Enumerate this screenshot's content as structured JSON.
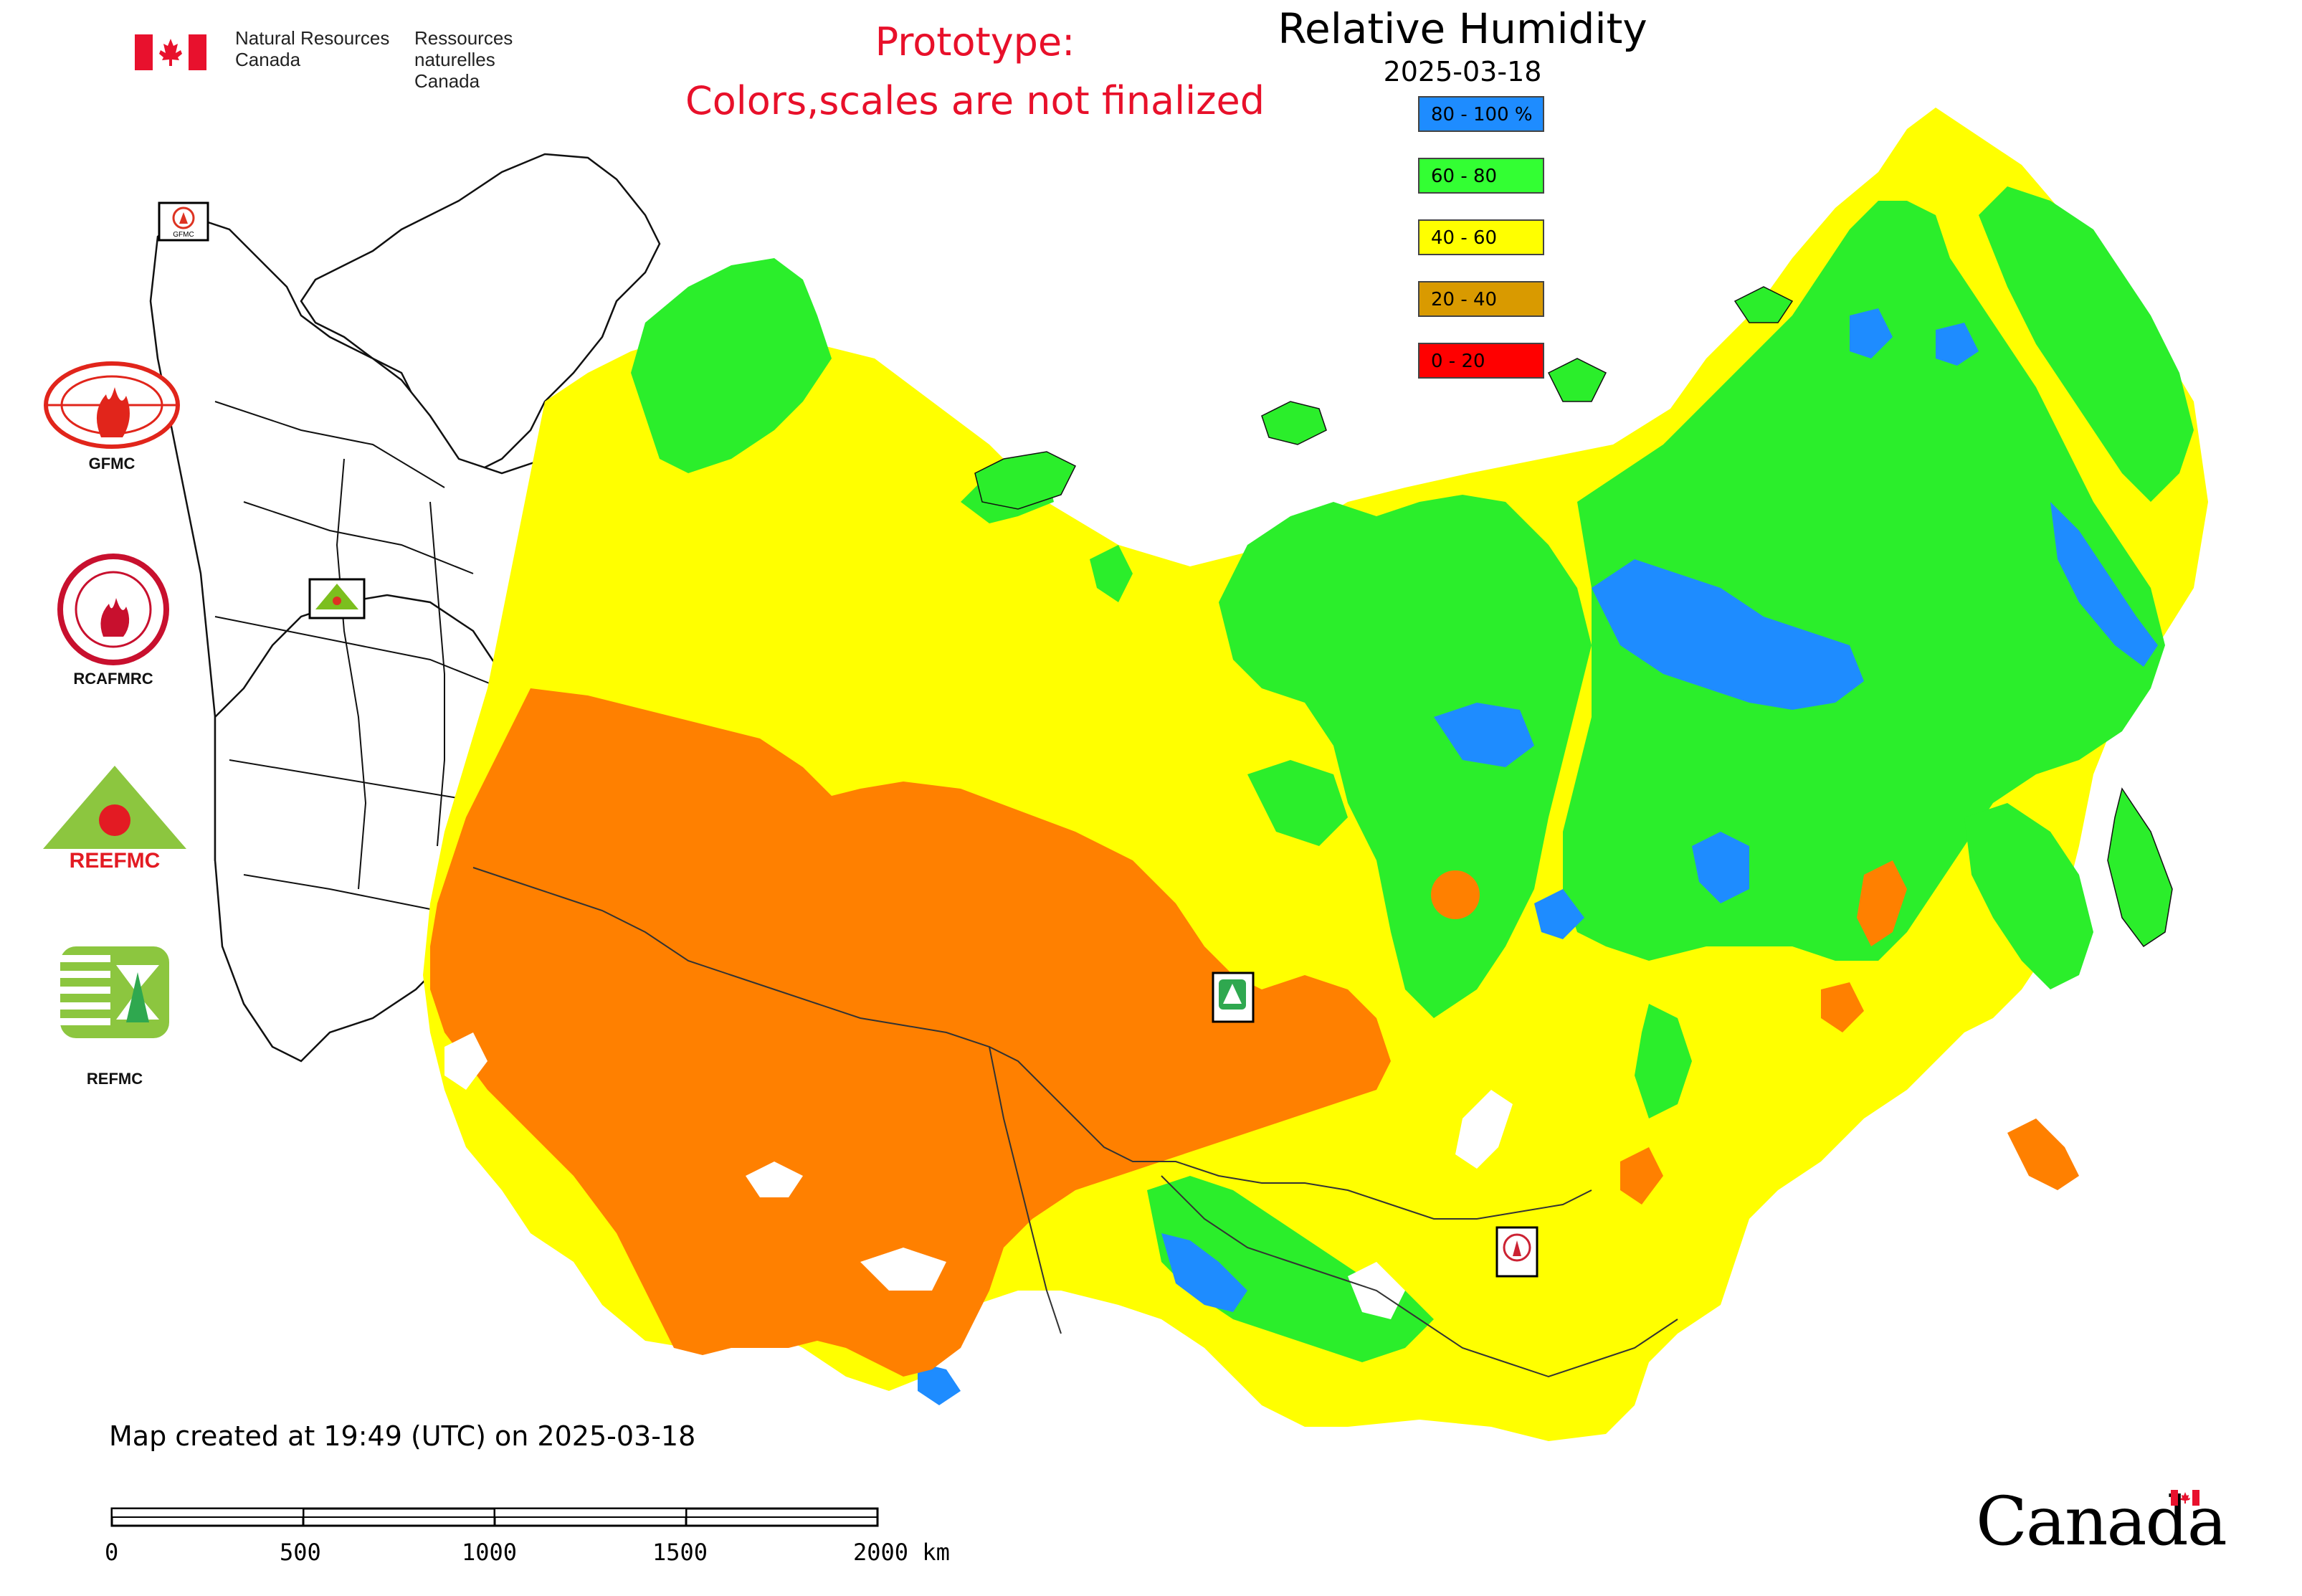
{
  "header": {
    "agency_en_line1": "Natural Resources",
    "agency_en_line2": "Canada",
    "agency_fr_line1": "Ressources naturelles",
    "agency_fr_line2": "Canada",
    "prototype_line1": "Prototype:",
    "prototype_line2": "Colors,scales are not finalized"
  },
  "map": {
    "title": "Relative Humidity",
    "date": "2025-03-18",
    "legend": [
      {
        "label": "80 - 100 %",
        "color": "#1e8cff"
      },
      {
        "label": "60 - 80",
        "color": "#33ff33"
      },
      {
        "label": "40 - 60",
        "color": "#ffff00"
      },
      {
        "label": "20 - 40",
        "color": "#d99a00"
      },
      {
        "label": "0 - 20",
        "color": "#ff0000"
      }
    ],
    "region_colors": {
      "blue": "#1e8cff",
      "green": "#2bee2b",
      "yellow": "#ffff00",
      "orange": "#ff8000",
      "white": "#ffffff"
    },
    "station_markers": [
      "GFMC",
      "REEFMC",
      "REFMC",
      "RCAFMRC"
    ]
  },
  "logos": {
    "gfmc": "GFMC",
    "rcafmrc": "RCAFMRC",
    "reefmc": "REEFMC",
    "reefmc_text": "REEFMC",
    "refmc": "REFMC"
  },
  "footer": {
    "created": "Map created at 19:49 (UTC) on 2025-03-18",
    "scale_ticks": [
      "0",
      "500",
      "1000",
      "1500",
      "2000 km"
    ],
    "wordmark": "Canada"
  }
}
